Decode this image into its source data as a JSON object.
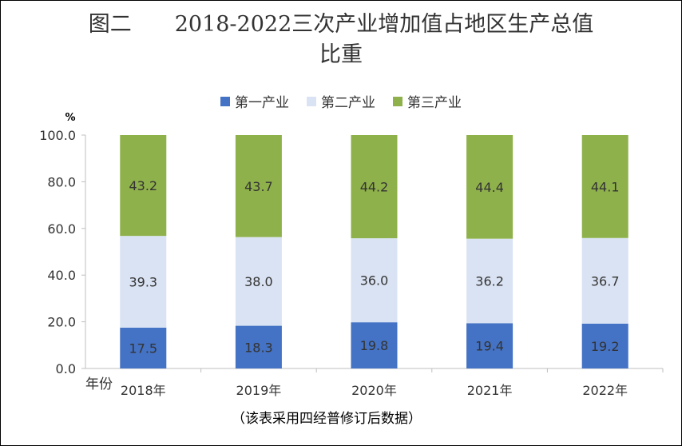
{
  "title": {
    "line1": "图二　　2018-2022三次产业增加值占地区生产总值",
    "line2": "比重"
  },
  "note": "（该表采用四经普修订后数据）",
  "colors": {
    "primary": "#4472C4",
    "secondary": "#DAE3F3",
    "tertiary": "#8FB14B",
    "axis": "#BFBFBF",
    "text": "#333333"
  },
  "chart_data": {
    "type": "bar",
    "stacked": true,
    "categories": [
      "2018年",
      "2019年",
      "2020年",
      "2021年",
      "2022年"
    ],
    "series": [
      {
        "name": "第一产业",
        "values": [
          17.5,
          18.3,
          19.8,
          19.4,
          19.2
        ]
      },
      {
        "name": "第二产业",
        "values": [
          39.3,
          38.0,
          36.0,
          36.2,
          36.7
        ]
      },
      {
        "name": "第三产业",
        "values": [
          43.2,
          43.7,
          44.2,
          44.4,
          44.1
        ]
      }
    ],
    "ylabel": "%",
    "xlabel": "年份",
    "ylim": [
      0,
      100
    ],
    "yticks": [
      "0.0",
      "20.0",
      "40.0",
      "60.0",
      "80.0",
      "100.0"
    ],
    "grid": false,
    "legend": "top-center"
  }
}
